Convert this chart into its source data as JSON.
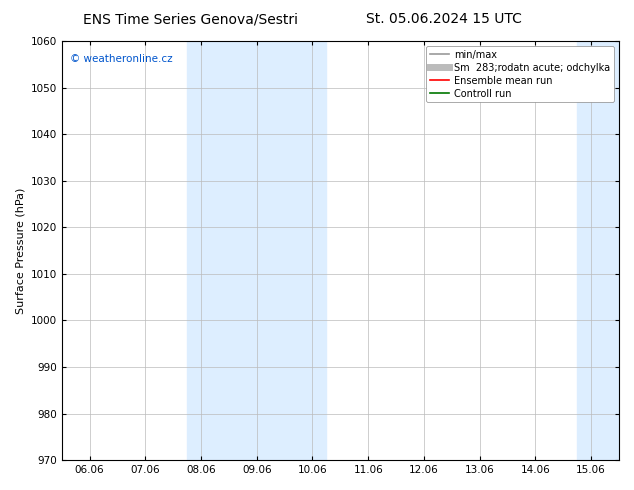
{
  "title_left": "ENS Time Series Genova/Sestri",
  "title_right": "St. 05.06.2024 15 UTC",
  "ylabel": "Surface Pressure (hPa)",
  "ylim": [
    970,
    1060
  ],
  "yticks": [
    970,
    980,
    990,
    1000,
    1010,
    1020,
    1030,
    1040,
    1050,
    1060
  ],
  "xtick_labels": [
    "06.06",
    "07.06",
    "08.06",
    "09.06",
    "10.06",
    "11.06",
    "12.06",
    "13.06",
    "14.06",
    "15.06"
  ],
  "xtick_positions": [
    0,
    1,
    2,
    3,
    4,
    5,
    6,
    7,
    8,
    9
  ],
  "shaded_bands": [
    {
      "x_start": 1.75,
      "x_end": 4.25,
      "color": "#ddeeff"
    },
    {
      "x_start": 8.75,
      "x_end": 9.5,
      "color": "#ddeeff"
    }
  ],
  "xlim": [
    -0.5,
    9.5
  ],
  "watermark": "© weatheronline.cz",
  "watermark_color": "#0055cc",
  "legend_entries": [
    {
      "label": "min/max",
      "color": "#999999",
      "lw": 1.2,
      "style": "-"
    },
    {
      "label": "Sm  283;rodatn acute; odchylka",
      "color": "#bbbbbb",
      "lw": 5,
      "style": "-"
    },
    {
      "label": "Ensemble mean run",
      "color": "#ff0000",
      "lw": 1.2,
      "style": "-"
    },
    {
      "label": "Controll run",
      "color": "#007700",
      "lw": 1.2,
      "style": "-"
    }
  ],
  "bg_color": "#ffffff",
  "grid_color": "#bbbbbb",
  "title_fontsize": 10,
  "label_fontsize": 8,
  "tick_fontsize": 7.5,
  "legend_fontsize": 7
}
